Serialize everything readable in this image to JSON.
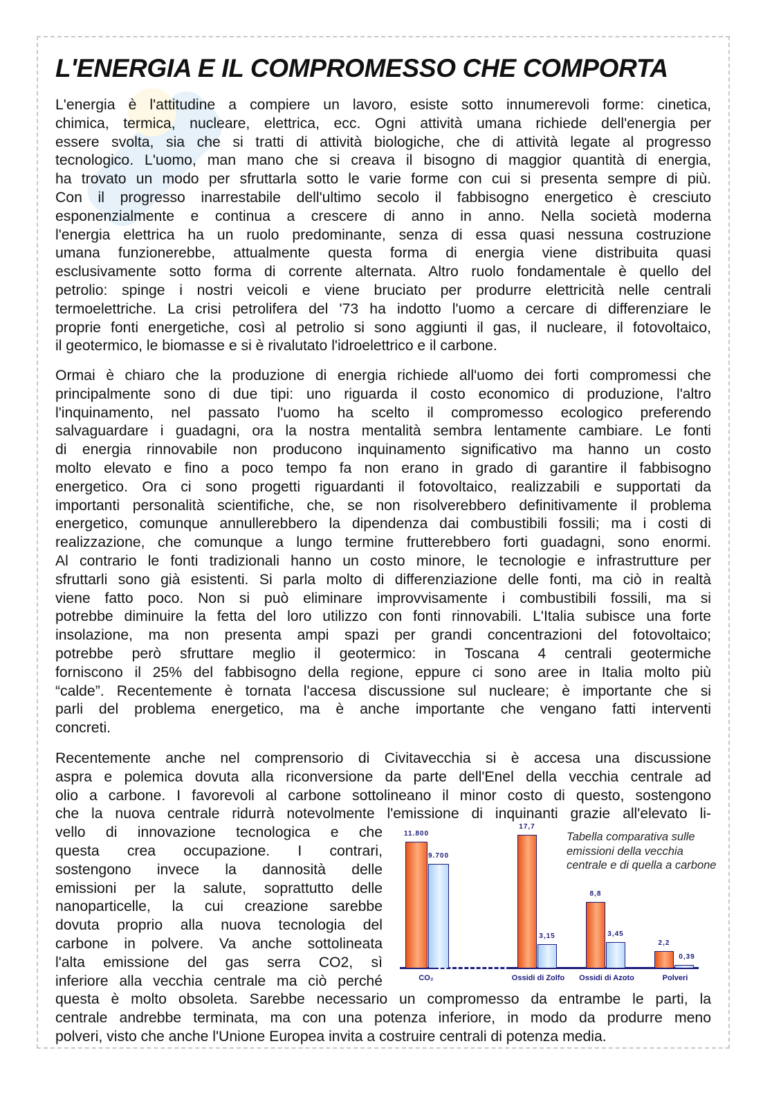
{
  "title": "L'ENERGIA E IL COMPROMESSO CHE COMPORTA",
  "paragraphs": [
    [
      "L'energia è l'attitudine a compiere un lavoro, esiste sotto innumerevoli forme: cinetica,",
      "chimica, termica, nucleare, elettrica, ecc. Ogni attività umana richiede dell'energia per",
      "essere svolta, sia che si tratti di attività biologiche, che di attività legate al progresso",
      "tecnologico. L'uomo, man mano che si creava il bisogno di maggior quantità di energia,",
      "ha trovato un modo per sfruttarla sotto le varie forme con cui si presenta sempre di più.",
      "Con il progresso inarrestabile dell'ultimo secolo il fabbisogno energetico è cresciuto",
      "esponenzialmente e continua a crescere di anno in anno. Nella società moderna",
      "l'energia elettrica ha un ruolo predominante, senza di essa quasi nessuna costruzione",
      "umana funzionerebbe, attualmente questa forma di energia viene distribuita quasi",
      "esclusivamente sotto forma di corrente alternata. Altro ruolo fondamentale è quello del",
      "petrolio: spinge i nostri veicoli e viene bruciato per produrre elettricità nelle centrali",
      "termoelettriche. La crisi petrolifera del '73 ha indotto l'uomo a cercare di differenziare le",
      "proprie fonti energetiche, così al petrolio si sono aggiunti il gas, il nucleare, il fotovoltaico,",
      "il geotermico, le biomasse e si è rivalutato l'idroelettrico e il carbone."
    ],
    [
      "Ormai è chiaro che la produzione di energia richiede all'uomo dei forti compromessi che",
      "principalmente sono di due tipi: uno riguarda il costo economico di produzione, l'altro",
      "l'inquinamento, nel passato l'uomo ha scelto il compromesso ecologico preferendo",
      "salvaguardare i guadagni, ora la nostra mentalità sembra lentamente cambiare. Le fonti",
      "di energia rinnovabile non producono inquinamento significativo ma hanno un costo",
      "molto elevato e fino a poco tempo fa non erano in grado di garantire il fabbisogno",
      "energetico. Ora ci sono progetti riguardanti il fotovoltaico, realizzabili e supportati da",
      "importanti personalità scientifiche, che, se non risolverebbero definitivamente il problema",
      "energetico, comunque annullerebbero la dipendenza dai combustibili fossili; ma i costi di",
      "realizzazione, che comunque a lungo termine frutterebbero forti guadagni, sono enormi.",
      "Al contrario le fonti tradizionali hanno un costo minore, le tecnologie e infrastrutture per",
      "sfruttarli sono già esistenti. Si parla molto di differenziazione delle fonti, ma ciò in realtà",
      "viene fatto poco. Non si può eliminare improvvisamente i combustibili fossili, ma si",
      "potrebbe diminuire la fetta del loro utilizzo con fonti rinnovabili. L'Italia subisce una forte",
      "insolazione, ma non presenta ampi spazi per grandi concentrazioni del fotovoltaico;",
      "potrebbe però sfruttare meglio il geotermico: in Toscana 4 centrali geotermiche",
      "forniscono il 25% del fabbisogno della regione, eppure ci sono aree in Italia molto più",
      "“calde”. Recentemente è tornata l'accesa discussione sul nucleare; è importante che si",
      "parli del problema energetico, ma è anche importante che vengano fatti interventi",
      "concreti."
    ],
    [
      "Recentemente anche nel comprensorio di Civitavecchia si è accesa una discussione",
      "aspra e polemica dovuta alla riconversione da parte dell'Enel della vecchia centrale ad",
      "olio a carbone. I favorevoli al carbone sottolineano il minor costo di questo, sostengono",
      "che la nuova centrale ridurrà notevolmente l'emissione di inquinanti grazie all'elevato li-",
      "vello di innovazione tecnologica e che",
      "questa crea occupazione. I contrari,",
      "sostengono invece la dannosità delle",
      "emissioni per la salute, soprattutto delle",
      "nanoparticelle, la cui creazione sarebbe",
      "dovuta proprio alla nuova tecnologia del",
      "carbone in polvere. Va anche sottolineata",
      "l'alta emissione del gas serra CO2, sì",
      "inferiore alla vecchia centrale ma ciò perché",
      "questa è molto obsoleta. Sarebbe necessario un compromesso da entrambe le parti, la",
      "centrale andrebbe terminata, ma con una potenza inferiore, in modo da produrre meno",
      "polveri, visto che anche l'Unione Europea invita a costruire centrali di potenza media."
    ]
  ],
  "chart_data": {
    "type": "bar",
    "title": "",
    "caption": "Tabella comparativa sulle emissioni della vecchia centrale e di quella a carbone",
    "categories": [
      "CO₂",
      "Ossidi di Zolfo",
      "Ossidi di Azoto",
      "Polveri"
    ],
    "series": [
      {
        "values": [
          11800,
          17.7,
          8.8,
          2.2
        ],
        "labels": [
          "11.800",
          "17,7",
          "8,8",
          "2,2"
        ],
        "color": "#f0692e"
      },
      {
        "values": [
          9700,
          3.15,
          3.45,
          0.39
        ],
        "labels": [
          "9.700",
          "3,15",
          "3,45",
          "0,39"
        ],
        "color": "#cfe6ff"
      }
    ],
    "axis_color": "#1b1b7a",
    "broken_axis_after_first_category": true
  }
}
